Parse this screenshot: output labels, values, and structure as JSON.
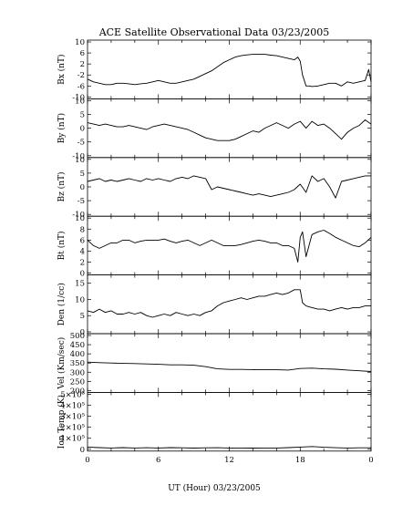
{
  "chart_data": {
    "type": "line",
    "title": "ACE Satellite Observational Data   03/23/2005",
    "xlabel": "UT (Hour)   03/23/2005",
    "x_tick_labels": [
      "0",
      "6",
      "12",
      "18",
      "0"
    ],
    "xlim_hours": [
      0,
      24
    ],
    "grid": false,
    "panels": [
      {
        "name": "Bx",
        "ylabel": "Bx (nT)",
        "ylim": [
          -10,
          10
        ],
        "y_ticks": [
          10,
          6,
          2,
          -2,
          -6,
          -10
        ],
        "y_tick_labels": [
          "10",
          "6",
          "2",
          "-2",
          "-6",
          "-10"
        ],
        "series": {
          "x": [
            0,
            0.5,
            1,
            1.5,
            2,
            2.5,
            3,
            3.5,
            4,
            4.5,
            5,
            5.5,
            6,
            6.5,
            7,
            7.5,
            8,
            8.5,
            9,
            9.5,
            10,
            10.5,
            11,
            11.5,
            12,
            12.5,
            13,
            13.5,
            14,
            14.5,
            15,
            15.5,
            16,
            16.5,
            17,
            17.5,
            17.8,
            18,
            18.2,
            18.5,
            18.8,
            19,
            19.5,
            20,
            20.5,
            21,
            21.5,
            22,
            22.5,
            23,
            23.5,
            23.8,
            24
          ],
          "y": [
            -3.5,
            -4.5,
            -5,
            -5.5,
            -5.5,
            -5,
            -5,
            -5.2,
            -5.5,
            -5.2,
            -5,
            -4.5,
            -4,
            -4.5,
            -5,
            -5,
            -4.5,
            -4,
            -3.5,
            -2.5,
            -1.5,
            -0.5,
            1,
            2.5,
            3.5,
            4.5,
            5,
            5.3,
            5.5,
            5.5,
            5.5,
            5.2,
            5,
            4.5,
            4,
            3.5,
            4.5,
            3,
            -2,
            -6,
            -6,
            -6.2,
            -6,
            -5.5,
            -5,
            -5,
            -6,
            -4.5,
            -5,
            -4.5,
            -4,
            0,
            -4.5
          ]
        }
      },
      {
        "name": "By",
        "ylabel": "By (nT)",
        "ylim": [
          -10,
          10
        ],
        "y_ticks": [
          10,
          5,
          0,
          -5,
          -10
        ],
        "y_tick_labels": [
          "10",
          "5",
          "0",
          "-5",
          "-10"
        ],
        "series": {
          "x": [
            0,
            0.5,
            1,
            1.5,
            2,
            2.5,
            3,
            3.5,
            4,
            4.5,
            5,
            5.5,
            6,
            6.5,
            7,
            7.5,
            8,
            8.5,
            9,
            9.5,
            10,
            10.5,
            11,
            11.5,
            12,
            12.5,
            13,
            13.5,
            14,
            14.5,
            15,
            15.5,
            16,
            16.5,
            17,
            17.5,
            18,
            18.5,
            19,
            19.5,
            20,
            20.5,
            21,
            21.5,
            22,
            22.5,
            23,
            23.5,
            24
          ],
          "y": [
            2,
            1.5,
            1,
            1.5,
            1,
            0.5,
            0.5,
            1,
            0.5,
            0,
            -0.5,
            0.5,
            1,
            1.5,
            1,
            0.5,
            0,
            -0.5,
            -1.5,
            -2.5,
            -3.5,
            -4,
            -4.5,
            -4.5,
            -4.5,
            -4,
            -3,
            -2,
            -1,
            -1.5,
            0,
            1,
            2,
            1,
            0,
            1.5,
            2.5,
            0,
            2.5,
            1,
            1.5,
            0,
            -2,
            -4,
            -1.5,
            0,
            1,
            3,
            1.5
          ]
        }
      },
      {
        "name": "Bz",
        "ylabel": "Bz (nT)",
        "ylim": [
          -10,
          10
        ],
        "y_ticks": [
          10,
          5,
          0,
          -5,
          -10
        ],
        "y_tick_labels": [
          "10",
          "5",
          "0",
          "-5",
          "-10"
        ],
        "series": {
          "x": [
            0,
            0.5,
            1,
            1.5,
            2,
            2.5,
            3,
            3.5,
            4,
            4.5,
            5,
            5.5,
            6,
            6.5,
            7,
            7.5,
            8,
            8.5,
            9,
            9.5,
            10,
            10.5,
            11,
            11.5,
            12,
            12.5,
            13,
            13.5,
            14,
            14.5,
            15,
            15.5,
            16,
            16.5,
            17,
            17.5,
            18,
            18.5,
            19,
            19.5,
            20,
            20.5,
            21,
            21.5,
            22,
            22.5,
            23,
            23.5,
            24
          ],
          "y": [
            2,
            2.5,
            3,
            2,
            2.5,
            2,
            2.5,
            3,
            2.5,
            2,
            3,
            2.5,
            3,
            2.5,
            2,
            3,
            3.5,
            3,
            4,
            3.5,
            3,
            -1,
            0,
            -0.5,
            -1,
            -1.5,
            -2,
            -2.5,
            -3,
            -2.5,
            -3,
            -3.5,
            -3,
            -2.5,
            -2,
            -1,
            1,
            -2,
            4,
            2,
            3,
            0,
            -4,
            2,
            2.5,
            3,
            3.5,
            4,
            4
          ]
        }
      },
      {
        "name": "Bt",
        "ylabel": "Bt (nT)",
        "ylim": [
          0,
          10
        ],
        "y_ticks": [
          10,
          8,
          6,
          4,
          2,
          0
        ],
        "y_tick_labels": [
          "10",
          "8",
          "6",
          "4",
          "2",
          "0"
        ],
        "series": {
          "x": [
            0,
            0.5,
            1,
            1.5,
            2,
            2.5,
            3,
            3.5,
            4,
            4.5,
            5,
            5.5,
            6,
            6.5,
            7,
            7.5,
            8,
            8.5,
            9,
            9.5,
            10,
            10.5,
            11,
            11.5,
            12,
            12.5,
            13,
            13.5,
            14,
            14.5,
            15,
            15.5,
            16,
            16.5,
            17,
            17.5,
            17.8,
            18,
            18.2,
            18.5,
            19,
            19.5,
            20,
            20.5,
            21,
            21.5,
            22,
            22.5,
            23,
            23.5,
            24
          ],
          "y": [
            6,
            5,
            4.5,
            5,
            5.5,
            5.5,
            6,
            6,
            5.5,
            5.8,
            6,
            6,
            6,
            6.2,
            5.8,
            5.5,
            5.8,
            6,
            5.5,
            5,
            5.5,
            6,
            5.5,
            5,
            5,
            5,
            5.2,
            5.5,
            5.8,
            6,
            5.8,
            5.5,
            5.5,
            5,
            5,
            4.5,
            2,
            6.5,
            7.5,
            3,
            7,
            7.5,
            7.8,
            7.2,
            6.5,
            6,
            5.5,
            5,
            4.8,
            5.5,
            6.5
          ]
        }
      },
      {
        "name": "Den",
        "ylabel": "Den (1/cc)",
        "ylim": [
          0,
          17
        ],
        "y_ticks": [
          15,
          10,
          5,
          0
        ],
        "y_tick_labels": [
          "15",
          "10",
          "5",
          "0"
        ],
        "series": {
          "x": [
            0,
            0.5,
            1,
            1.5,
            2,
            2.5,
            3,
            3.5,
            4,
            4.5,
            5,
            5.5,
            6,
            6.5,
            7,
            7.5,
            8,
            8.5,
            9,
            9.5,
            10,
            10.5,
            11,
            11.5,
            12,
            12.5,
            13,
            13.5,
            14,
            14.5,
            15,
            15.5,
            16,
            16.5,
            17,
            17.5,
            18,
            18.2,
            18.5,
            19,
            19.5,
            20,
            20.5,
            21,
            21.5,
            22,
            22.5,
            23,
            23.5,
            24
          ],
          "y": [
            6.5,
            6,
            7,
            6,
            6.5,
            5.5,
            5.5,
            6,
            5.5,
            6,
            5,
            4.5,
            5,
            5.5,
            5,
            6,
            5.5,
            5,
            5.5,
            5,
            6,
            6.5,
            8,
            9,
            9.5,
            10,
            10.5,
            10,
            10.5,
            11,
            11,
            11.5,
            12,
            11.5,
            12,
            13,
            13,
            9,
            8,
            7.5,
            7,
            7,
            6.5,
            7,
            7.5,
            7,
            7.5,
            7.5,
            8,
            8
          ]
        }
      },
      {
        "name": "Vel",
        "ylabel": "Vel (Km/sec)",
        "ylim": [
          200,
          500
        ],
        "y_ticks": [
          500,
          450,
          400,
          350,
          300,
          250,
          200
        ],
        "y_tick_labels": [
          "500",
          "450",
          "400",
          "350",
          "300",
          "250",
          "200"
        ],
        "series": {
          "x": [
            0,
            1,
            2,
            3,
            4,
            5,
            6,
            7,
            8,
            9,
            10,
            11,
            12,
            13,
            14,
            15,
            16,
            17,
            18,
            19,
            20,
            21,
            22,
            23,
            24
          ],
          "y": [
            355,
            352,
            350,
            348,
            347,
            345,
            343,
            340,
            340,
            338,
            330,
            318,
            315,
            315,
            314,
            313,
            313,
            312,
            320,
            322,
            318,
            316,
            312,
            308,
            304
          ]
        }
      },
      {
        "name": "Ion Temp",
        "ylabel": "Ion Temp (K)",
        "ylim": [
          0,
          500000
        ],
        "y_ticks": [
          500000,
          400000,
          300000,
          200000,
          100000,
          0
        ],
        "y_tick_labels": [
          "5×10⁵",
          "4×10⁵",
          "3×10⁵",
          "2×10⁵",
          "1×10⁵",
          "0"
        ],
        "series": {
          "x": [
            0,
            1,
            2,
            3,
            4,
            5,
            6,
            7,
            8,
            9,
            10,
            11,
            12,
            13,
            14,
            15,
            16,
            17,
            18,
            19,
            20,
            21,
            22,
            23,
            24
          ],
          "y": [
            20000,
            15000,
            12000,
            15000,
            12000,
            14000,
            12000,
            15000,
            13000,
            11000,
            13000,
            14000,
            12000,
            10000,
            11000,
            12000,
            12000,
            15000,
            20000,
            25000,
            18000,
            14000,
            12000,
            13000,
            13000
          ]
        }
      }
    ]
  }
}
